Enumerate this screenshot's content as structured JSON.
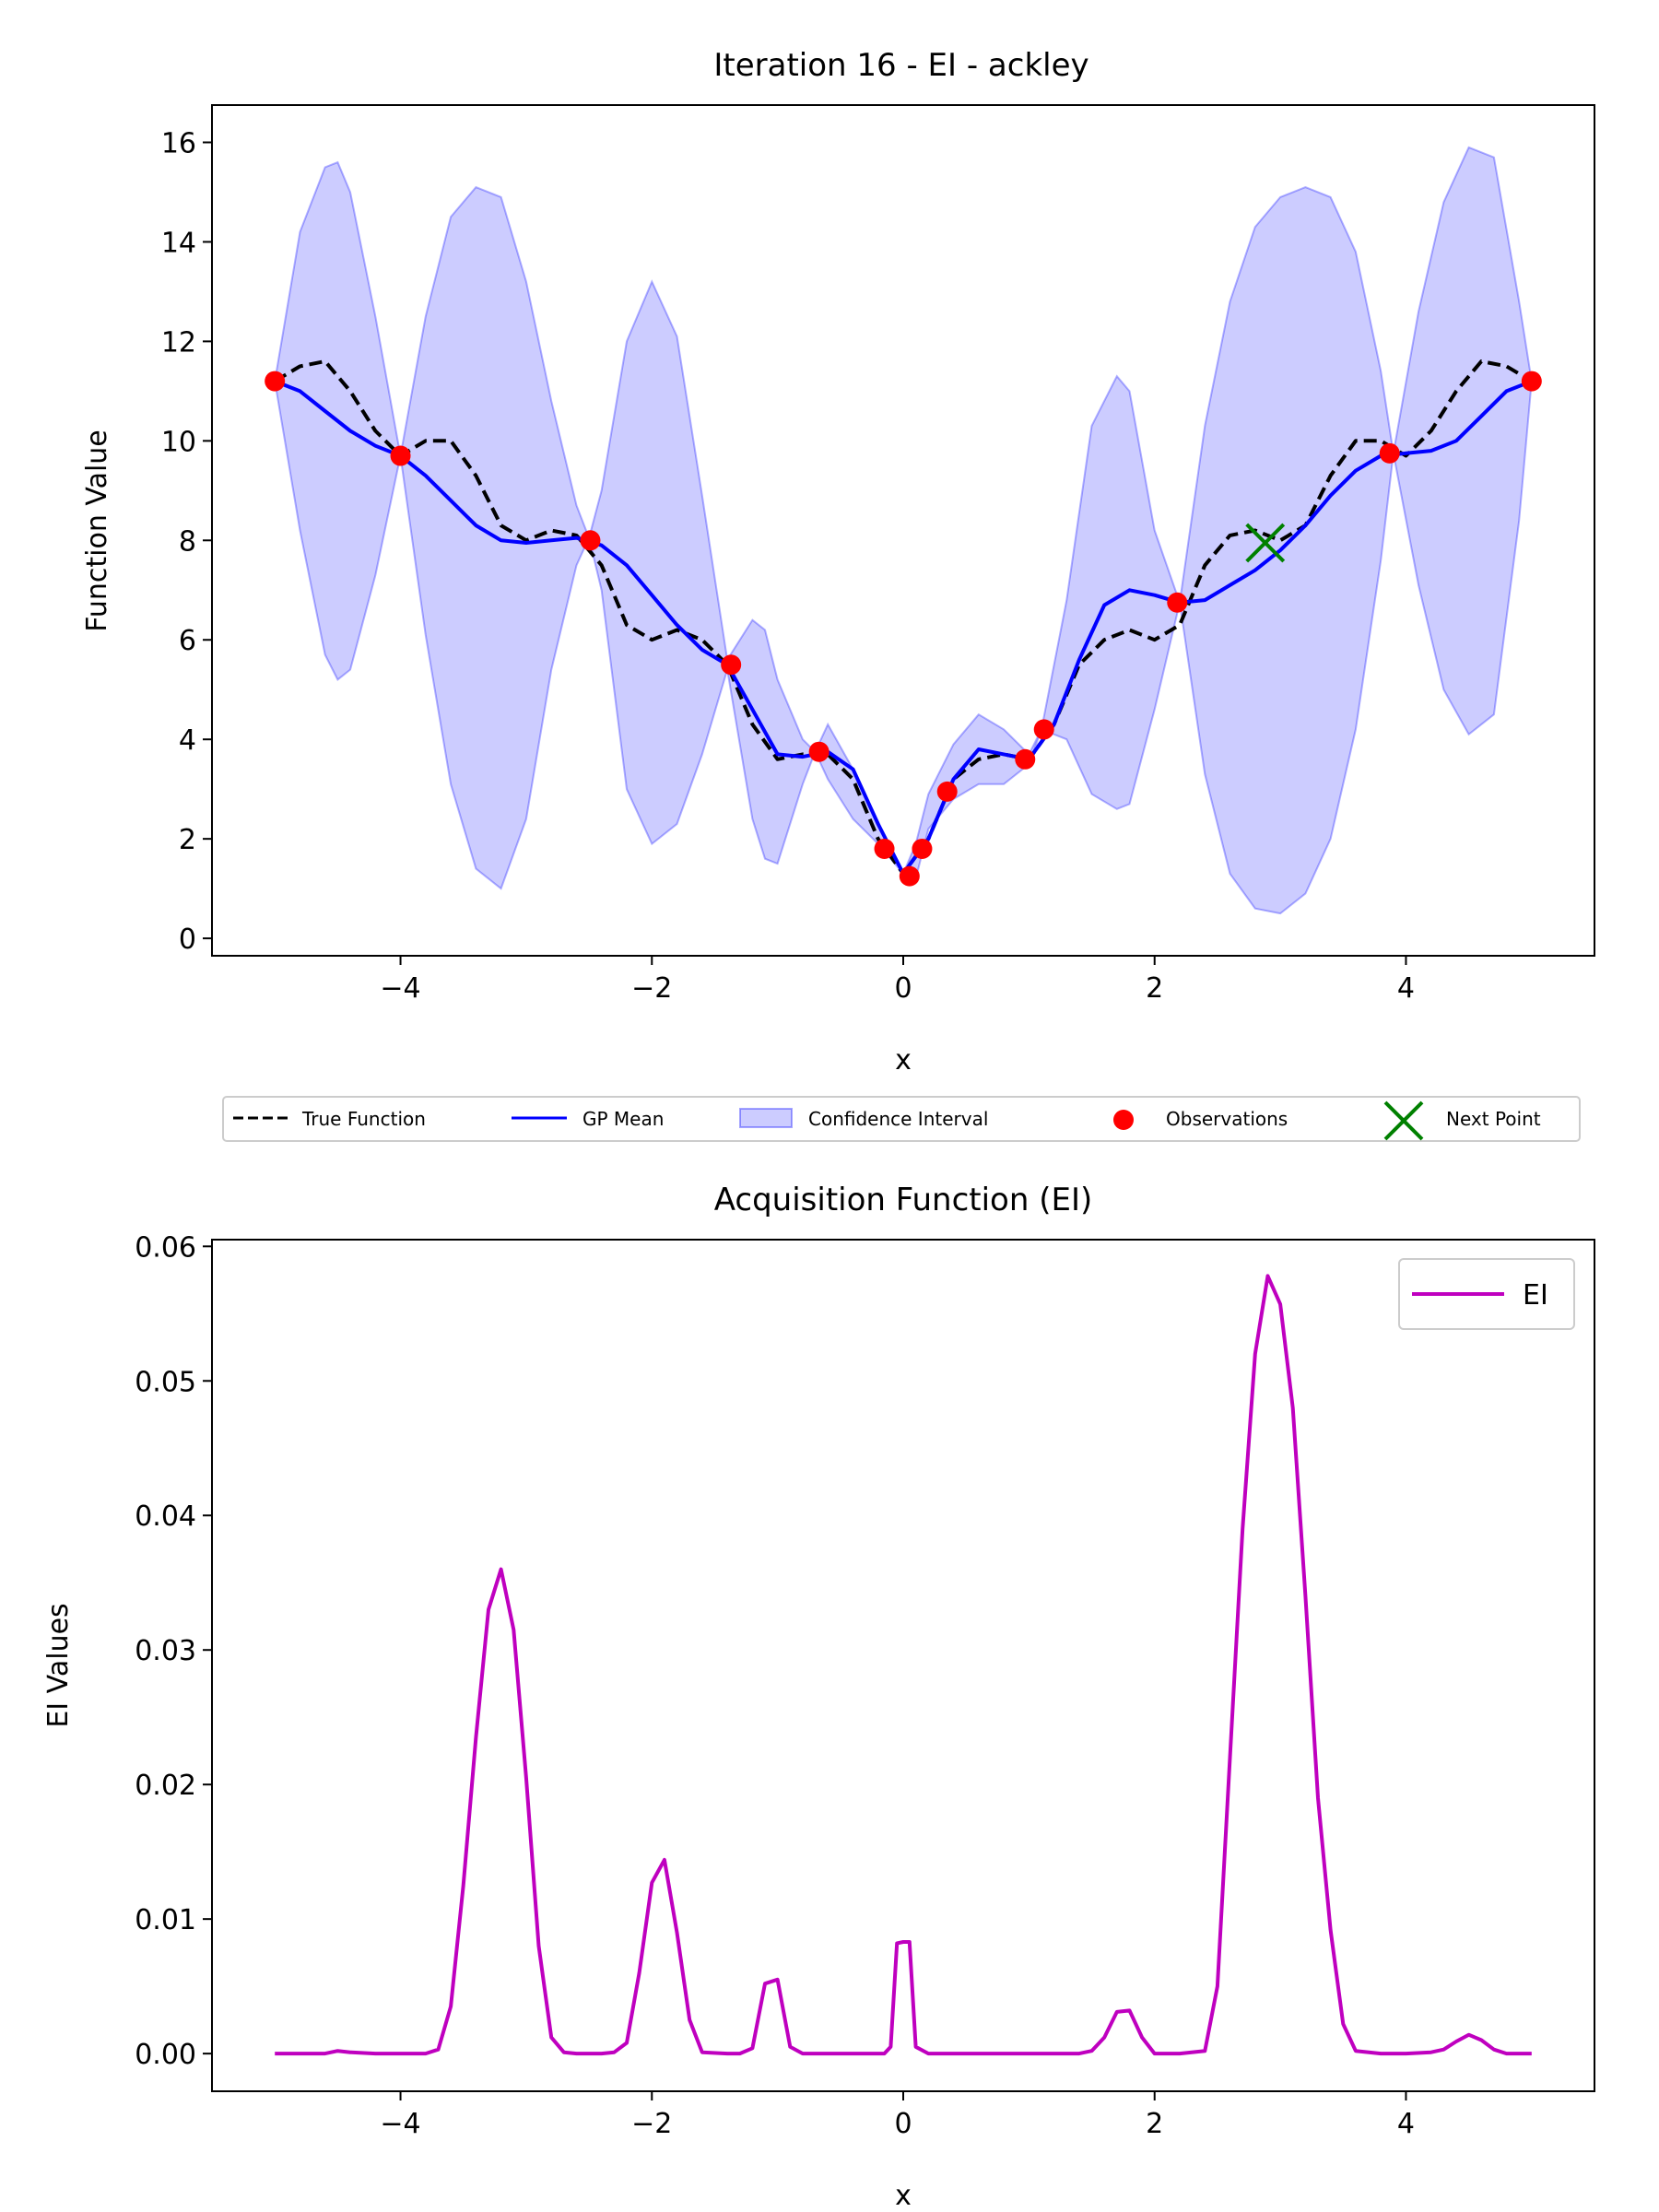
{
  "chart_data": [
    {
      "type": "line",
      "title": "Iteration 16 - EI - ackley",
      "xlabel": "x",
      "ylabel": "Function Value",
      "xlim": [
        -5.5,
        5.5
      ],
      "ylim": [
        -0.35,
        16.75
      ],
      "xticks": [
        -4,
        -2,
        0,
        2,
        4
      ],
      "xtick_labels": [
        "−4",
        "−2",
        "0",
        "2",
        "4"
      ],
      "yticks": [
        0,
        2,
        4,
        6,
        8,
        10,
        12,
        14,
        16
      ],
      "ytick_labels": [
        "0",
        "2",
        "4",
        "6",
        "8",
        "10",
        "12",
        "14",
        "16"
      ],
      "legend": {
        "placement": "below-center",
        "entries": [
          "True Function",
          "GP Mean",
          "Confidence Interval",
          "Observations",
          "Next Point"
        ]
      },
      "series": [
        {
          "name": "True Function",
          "style": "dashed",
          "color": "#000000",
          "x": [
            -5.0,
            -4.8,
            -4.6,
            -4.4,
            -4.2,
            -4.0,
            -3.8,
            -3.6,
            -3.4,
            -3.2,
            -3.0,
            -2.8,
            -2.6,
            -2.4,
            -2.2,
            -2.0,
            -1.8,
            -1.6,
            -1.4,
            -1.2,
            -1.0,
            -0.8,
            -0.6,
            -0.4,
            -0.2,
            0.0,
            0.2,
            0.4,
            0.6,
            0.8,
            1.0,
            1.2,
            1.4,
            1.6,
            1.8,
            2.0,
            2.2,
            2.4,
            2.6,
            2.8,
            3.0,
            3.2,
            3.4,
            3.6,
            3.8,
            4.0,
            4.2,
            4.4,
            4.6,
            4.8,
            5.0
          ],
          "y": [
            11.2,
            11.5,
            11.6,
            11.0,
            10.2,
            9.7,
            10.0,
            10.0,
            9.3,
            8.3,
            8.0,
            8.2,
            8.1,
            7.5,
            6.3,
            6.0,
            6.2,
            6.0,
            5.5,
            4.3,
            3.6,
            3.7,
            3.7,
            3.2,
            2.0,
            1.3,
            2.0,
            3.2,
            3.6,
            3.7,
            3.6,
            4.3,
            5.5,
            6.0,
            6.2,
            6.0,
            6.3,
            7.5,
            8.1,
            8.2,
            8.0,
            8.3,
            9.3,
            10.0,
            10.0,
            9.7,
            10.2,
            11.0,
            11.6,
            11.5,
            11.2
          ]
        },
        {
          "name": "GP Mean",
          "style": "solid",
          "color": "#0000ff",
          "x": [
            -5.0,
            -4.8,
            -4.6,
            -4.4,
            -4.2,
            -4.0,
            -3.8,
            -3.6,
            -3.4,
            -3.2,
            -3.0,
            -2.8,
            -2.6,
            -2.4,
            -2.2,
            -2.0,
            -1.8,
            -1.6,
            -1.4,
            -1.2,
            -1.0,
            -0.8,
            -0.6,
            -0.4,
            -0.2,
            0.0,
            0.2,
            0.4,
            0.6,
            0.8,
            1.0,
            1.2,
            1.4,
            1.6,
            1.8,
            2.0,
            2.2,
            2.4,
            2.6,
            2.8,
            3.0,
            3.2,
            3.4,
            3.6,
            3.8,
            4.0,
            4.2,
            4.4,
            4.6,
            4.8,
            5.0
          ],
          "y": [
            11.2,
            11.0,
            10.6,
            10.2,
            9.9,
            9.7,
            9.3,
            8.8,
            8.3,
            8.0,
            7.95,
            8.0,
            8.05,
            7.9,
            7.5,
            6.9,
            6.3,
            5.8,
            5.5,
            4.6,
            3.7,
            3.65,
            3.75,
            3.4,
            2.3,
            1.3,
            2.0,
            3.2,
            3.8,
            3.7,
            3.6,
            4.3,
            5.6,
            6.7,
            7.0,
            6.9,
            6.75,
            6.8,
            7.1,
            7.4,
            7.8,
            8.3,
            8.9,
            9.4,
            9.7,
            9.75,
            9.8,
            10.0,
            10.5,
            11.0,
            11.2
          ]
        },
        {
          "name": "Confidence Interval",
          "style": "band",
          "color": "#0000ff",
          "x": [
            -5.0,
            -4.8,
            -4.6,
            -4.5,
            -4.4,
            -4.2,
            -4.0,
            -3.8,
            -3.6,
            -3.4,
            -3.2,
            -3.0,
            -2.8,
            -2.6,
            -2.5,
            -2.4,
            -2.2,
            -2.0,
            -1.8,
            -1.6,
            -1.4,
            -1.2,
            -1.1,
            -1.0,
            -0.8,
            -0.7,
            -0.6,
            -0.4,
            -0.2,
            -0.1,
            0.0,
            0.1,
            0.2,
            0.4,
            0.6,
            0.8,
            1.0,
            1.1,
            1.3,
            1.5,
            1.7,
            1.8,
            2.0,
            2.2,
            2.4,
            2.6,
            2.8,
            3.0,
            3.2,
            3.4,
            3.6,
            3.8,
            3.9,
            4.1,
            4.3,
            4.5,
            4.7,
            4.9,
            5.0
          ],
          "upper": [
            11.2,
            14.2,
            15.5,
            15.6,
            15.0,
            12.5,
            9.7,
            12.5,
            14.5,
            15.1,
            14.9,
            13.2,
            10.8,
            8.7,
            8.05,
            9.0,
            12.0,
            13.2,
            12.1,
            8.9,
            5.6,
            6.4,
            6.2,
            5.2,
            4.0,
            3.75,
            4.3,
            3.4,
            2.3,
            1.8,
            1.3,
            1.9,
            2.9,
            3.9,
            4.5,
            4.2,
            3.7,
            4.2,
            6.8,
            10.3,
            11.3,
            11.0,
            8.2,
            6.75,
            10.3,
            12.8,
            14.3,
            14.9,
            15.1,
            14.9,
            13.8,
            11.4,
            9.75,
            12.6,
            14.8,
            15.9,
            15.7,
            12.8,
            11.2
          ],
          "lower": [
            11.2,
            8.2,
            5.7,
            5.2,
            5.4,
            7.3,
            9.7,
            6.1,
            3.1,
            1.4,
            1.0,
            2.4,
            5.4,
            7.5,
            8.05,
            7.0,
            3.0,
            1.9,
            2.3,
            3.7,
            5.4,
            2.4,
            1.6,
            1.5,
            3.1,
            3.75,
            3.2,
            2.4,
            1.9,
            1.6,
            1.3,
            1.2,
            2.2,
            2.8,
            3.1,
            3.1,
            3.5,
            4.2,
            4.0,
            2.9,
            2.6,
            2.7,
            4.6,
            6.75,
            3.3,
            1.3,
            0.6,
            0.5,
            0.9,
            2.0,
            4.2,
            7.6,
            9.75,
            7.1,
            5.0,
            4.1,
            4.5,
            8.4,
            11.2
          ]
        },
        {
          "name": "Observations",
          "style": "markers",
          "color": "#ff0000",
          "x": [
            -5.0,
            -4.0,
            -2.49,
            -1.37,
            -0.67,
            -0.15,
            0.05,
            0.15,
            0.35,
            0.97,
            1.12,
            2.18,
            3.87,
            5.0
          ],
          "y": [
            11.2,
            9.7,
            8.0,
            5.5,
            3.75,
            1.8,
            1.25,
            1.8,
            2.95,
            3.6,
            4.2,
            6.75,
            9.75,
            11.2
          ]
        },
        {
          "name": "Next Point",
          "style": "x-marker",
          "color": "#008000",
          "x": [
            2.88
          ],
          "y": [
            7.95
          ]
        }
      ]
    },
    {
      "type": "line",
      "title": "Acquisition Function (EI)",
      "xlabel": "x",
      "ylabel": "EI Values",
      "xlim": [
        -5.5,
        5.5
      ],
      "ylim": [
        -0.0028,
        0.0605
      ],
      "xticks": [
        -4,
        -2,
        0,
        2,
        4
      ],
      "xtick_labels": [
        "−4",
        "−2",
        "0",
        "2",
        "4"
      ],
      "yticks": [
        0.0,
        0.01,
        0.02,
        0.03,
        0.04,
        0.05,
        0.06
      ],
      "ytick_labels": [
        "0.00",
        "0.01",
        "0.02",
        "0.03",
        "0.04",
        "0.05",
        "0.06"
      ],
      "legend": {
        "placement": "top-right",
        "entries": [
          "EI"
        ]
      },
      "series": [
        {
          "name": "EI",
          "color": "#bf00bf",
          "x": [
            -5.0,
            -4.8,
            -4.6,
            -4.5,
            -4.4,
            -4.2,
            -4.0,
            -3.8,
            -3.7,
            -3.6,
            -3.5,
            -3.4,
            -3.3,
            -3.2,
            -3.1,
            -3.0,
            -2.9,
            -2.8,
            -2.7,
            -2.6,
            -2.4,
            -2.3,
            -2.2,
            -2.1,
            -2.0,
            -1.9,
            -1.8,
            -1.7,
            -1.6,
            -1.4,
            -1.3,
            -1.2,
            -1.1,
            -1.0,
            -0.9,
            -0.8,
            -0.6,
            -0.4,
            -0.2,
            -0.15,
            -0.1,
            -0.05,
            0.0,
            0.05,
            0.1,
            0.2,
            0.4,
            0.6,
            0.8,
            1.0,
            1.2,
            1.4,
            1.5,
            1.6,
            1.7,
            1.8,
            1.9,
            2.0,
            2.2,
            2.4,
            2.5,
            2.6,
            2.7,
            2.8,
            2.9,
            3.0,
            3.1,
            3.2,
            3.3,
            3.4,
            3.5,
            3.6,
            3.8,
            4.0,
            4.2,
            4.3,
            4.4,
            4.5,
            4.6,
            4.7,
            4.8,
            5.0
          ],
          "y": [
            0.0,
            0.0,
            0.0,
            0.0002,
            0.0001,
            0.0,
            0.0,
            0.0,
            0.0003,
            0.0035,
            0.0125,
            0.0235,
            0.033,
            0.036,
            0.0315,
            0.0205,
            0.008,
            0.0012,
            0.0001,
            0.0,
            0.0,
            0.0001,
            0.0008,
            0.006,
            0.0127,
            0.0144,
            0.009,
            0.0025,
            0.0001,
            0.0,
            0.0,
            0.0004,
            0.0052,
            0.0055,
            0.0005,
            0.0,
            0.0,
            0.0,
            0.0,
            0.0,
            0.0005,
            0.0082,
            0.0083,
            0.0083,
            0.0005,
            0.0,
            0.0,
            0.0,
            0.0,
            0.0,
            0.0,
            0.0,
            0.0002,
            0.0012,
            0.0031,
            0.0032,
            0.0012,
            0.0,
            0.0,
            0.0002,
            0.005,
            0.022,
            0.039,
            0.052,
            0.0578,
            0.0557,
            0.048,
            0.034,
            0.019,
            0.0092,
            0.0022,
            0.0002,
            0.0,
            0.0,
            0.0001,
            0.0003,
            0.0009,
            0.0014,
            0.001,
            0.0003,
            0.0,
            0.0
          ]
        }
      ]
    }
  ]
}
